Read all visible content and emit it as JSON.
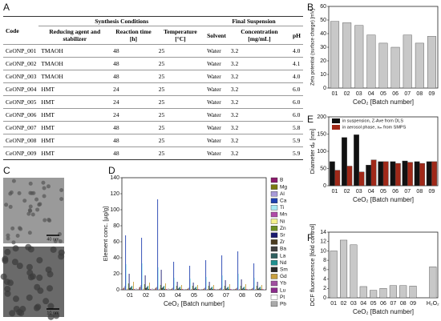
{
  "panels": [
    "A",
    "B",
    "C",
    "D",
    "E",
    "F"
  ],
  "table": {
    "header": [
      "Code",
      "Synthesis Conditions",
      "Final Suspension"
    ],
    "columns": [
      "Reducing agent and stabilizer",
      "Reaction time [h]",
      "Temperature [°C]",
      "Solvent",
      "Concentration [mg/mL]",
      "pH"
    ],
    "rows": [
      [
        "CeONP_001",
        "TMAOH",
        "48",
        "25",
        "Water",
        "3.2",
        "4.0"
      ],
      [
        "CeONP_002",
        "TMAOH",
        "48",
        "25",
        "Water",
        "3.2",
        "4.1"
      ],
      [
        "CeONP_003",
        "TMAOH",
        "48",
        "25",
        "Water",
        "3.2",
        "4.0"
      ],
      [
        "CeONP_004",
        "HMT",
        "24",
        "25",
        "Water",
        "3.2",
        "6.0"
      ],
      [
        "CeONP_005",
        "HMT",
        "24",
        "25",
        "Water",
        "3.2",
        "6.0"
      ],
      [
        "CeONP_006",
        "HMT",
        "24",
        "25",
        "Water",
        "3.2",
        "6.0"
      ],
      [
        "CeONP_007",
        "HMT",
        "48",
        "25",
        "Water",
        "3.2",
        "5.8"
      ],
      [
        "CeONP_008",
        "HMT",
        "48",
        "25",
        "Water",
        "3.2",
        "5.9"
      ],
      [
        "CeONP_009",
        "HMT",
        "48",
        "25",
        "Water",
        "3.2",
        "5.9"
      ]
    ]
  },
  "images": {
    "scale_bars": [
      "40 nm",
      "10 nm"
    ]
  },
  "chart_data": [
    {
      "type": "bar",
      "ylabel": "Zeta potential (surface charge) [mV]",
      "xlabel": "CeO₂ [Batch number]",
      "categories": [
        "01",
        "02",
        "03",
        "04",
        "05",
        "06",
        "07",
        "08",
        "09"
      ],
      "values": [
        49,
        48,
        46,
        39,
        33,
        30,
        39,
        33,
        38
      ],
      "color": "#c8c8c8",
      "ylim": [
        0,
        60
      ],
      "yticks": [
        0,
        10,
        20,
        30,
        40,
        50,
        60
      ]
    },
    {
      "type": "bar",
      "ylabel": "Element conc. [µg/g]",
      "xlabel": "CeO₂ [Batch number]",
      "categories": [
        "01",
        "02",
        "03",
        "04",
        "05",
        "06",
        "07",
        "08",
        "09"
      ],
      "ylim": [
        0,
        140
      ],
      "yticks": [
        0,
        20,
        40,
        60,
        80,
        100,
        120,
        140
      ],
      "legend": "right",
      "series": [
        {
          "name": "B",
          "color": "#8b1a6b",
          "values": [
            2,
            3,
            2,
            1,
            1,
            1,
            1,
            1,
            1
          ]
        },
        {
          "name": "Mg",
          "color": "#7a7a10",
          "values": [
            3,
            4,
            3,
            2,
            2,
            2,
            2,
            2,
            2
          ]
        },
        {
          "name": "Al",
          "color": "#a89ad8",
          "values": [
            5,
            6,
            4,
            3,
            3,
            3,
            3,
            3,
            3
          ]
        },
        {
          "name": "Ca",
          "color": "#2040b0",
          "values": [
            68,
            65,
            113,
            35,
            30,
            37,
            43,
            48,
            33
          ]
        },
        {
          "name": "Ti",
          "color": "#a8e8f4",
          "values": [
            32,
            33,
            28,
            15,
            14,
            16,
            18,
            20,
            15
          ]
        },
        {
          "name": "Mn",
          "color": "#b04aa8",
          "values": [
            1,
            1,
            1,
            1,
            1,
            1,
            1,
            1,
            1
          ]
        },
        {
          "name": "Ni",
          "color": "#f4f08c",
          "values": [
            2,
            2,
            2,
            1,
            1,
            1,
            1,
            1,
            1
          ]
        },
        {
          "name": "Zn",
          "color": "#6b8e23",
          "values": [
            8,
            7,
            6,
            5,
            5,
            5,
            5,
            5,
            5
          ]
        },
        {
          "name": "Sr",
          "color": "#1a1a70",
          "values": [
            20,
            18,
            25,
            10,
            9,
            10,
            12,
            13,
            10
          ]
        },
        {
          "name": "Zr",
          "color": "#4a3c20",
          "values": [
            2,
            2,
            2,
            1,
            1,
            1,
            1,
            1,
            1
          ]
        },
        {
          "name": "Ba",
          "color": "#404040",
          "values": [
            3,
            3,
            3,
            2,
            2,
            2,
            2,
            2,
            2
          ]
        },
        {
          "name": "La",
          "color": "#2f5f5f",
          "values": [
            4,
            4,
            4,
            3,
            3,
            3,
            3,
            3,
            3
          ]
        },
        {
          "name": "Nd",
          "color": "#1f8f8f",
          "values": [
            5,
            5,
            5,
            4,
            4,
            4,
            4,
            4,
            4
          ]
        },
        {
          "name": "Sm",
          "color": "#2a2a2a",
          "values": [
            1,
            1,
            1,
            1,
            1,
            1,
            1,
            1,
            1
          ]
        },
        {
          "name": "Gd",
          "color": "#c8a040",
          "values": [
            10,
            9,
            8,
            6,
            6,
            6,
            7,
            7,
            6
          ]
        },
        {
          "name": "Yb",
          "color": "#a050a0",
          "values": [
            1,
            1,
            1,
            1,
            1,
            1,
            1,
            1,
            1
          ]
        },
        {
          "name": "Lu",
          "color": "#8b2a8b",
          "values": [
            1,
            1,
            1,
            1,
            1,
            1,
            1,
            1,
            1
          ]
        },
        {
          "name": "Pt",
          "color": "#ffffff",
          "values": [
            1,
            1,
            1,
            1,
            1,
            1,
            1,
            1,
            1
          ]
        },
        {
          "name": "Pb",
          "color": "#aaaaaa",
          "values": [
            2,
            2,
            2,
            1,
            1,
            1,
            1,
            1,
            1
          ]
        }
      ]
    },
    {
      "type": "bar",
      "ylabel": "Diameter dₚ [nm]",
      "xlabel": "CeO₂ [Batch number]",
      "categories": [
        "01",
        "02",
        "03",
        "04",
        "05",
        "06",
        "07",
        "08",
        "09"
      ],
      "ylim": [
        0,
        200
      ],
      "yticks": [
        0,
        50,
        100,
        150,
        200
      ],
      "legend": "top",
      "series": [
        {
          "name": "in suspension, Z-Ave from DLS",
          "color": "#111111",
          "values": [
            70,
            140,
            148,
            60,
            70,
            70,
            72,
            70,
            70
          ]
        },
        {
          "name": "in aerosol phase, xₘ from SMPS",
          "color": "#a02818",
          "values": [
            45,
            57,
            40,
            75,
            70,
            65,
            68,
            65,
            70
          ]
        }
      ]
    },
    {
      "type": "bar",
      "ylabel": "DCF fluorescence [fold control]",
      "xlabel": "CeO₂ [Batch number]",
      "categories": [
        "01",
        "02",
        "03",
        "04",
        "05",
        "06",
        "07",
        "08",
        "09",
        null,
        "H₂O₂"
      ],
      "values": [
        10,
        12.3,
        11.3,
        2.4,
        1.6,
        2.0,
        2.6,
        2.6,
        2.5,
        null,
        6.6
      ],
      "color": "#c8c8c8",
      "ylim": [
        0,
        14
      ],
      "yticks": [
        0,
        2,
        4,
        6,
        8,
        10,
        12,
        14
      ]
    }
  ]
}
